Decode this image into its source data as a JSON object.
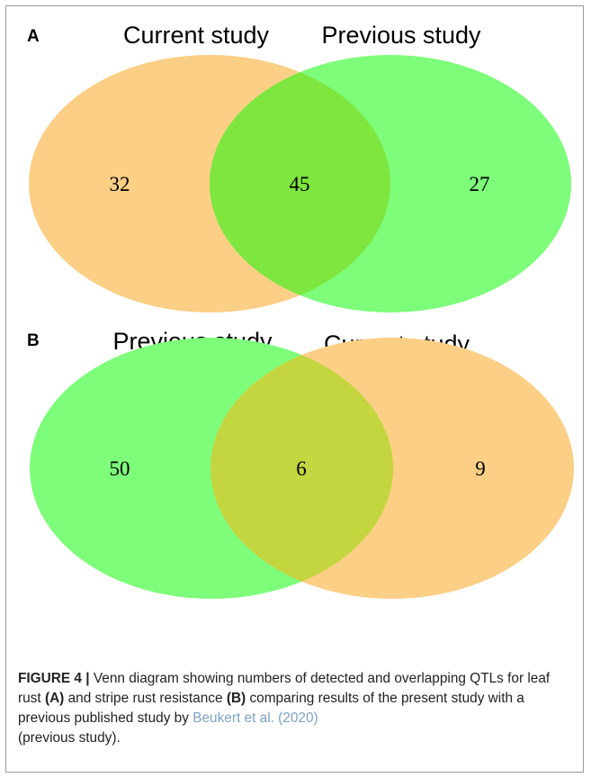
{
  "colors": {
    "orange_set": "#fccf86",
    "green_set": "#7dfd7a",
    "overlap_a": "#7fe63f",
    "overlap_b": "#c4d63f",
    "reference_link": "#7ea3c4"
  },
  "panels": [
    {
      "label": "A",
      "left_set": {
        "title": "Current study",
        "count": "32",
        "color": "orange"
      },
      "right_set": {
        "title": "Previous study",
        "count": "27",
        "color": "green"
      },
      "overlap_count": "45"
    },
    {
      "label": "B",
      "left_set": {
        "title": "Previous study",
        "count": "50",
        "color": "green"
      },
      "right_set": {
        "title": "Current study",
        "count": "9",
        "color": "orange"
      },
      "overlap_count": "6"
    }
  ],
  "caption": {
    "figure_label": "FIGURE 4 |",
    "text_1": " Venn diagram showing numbers of detected and overlapping QTLs for leaf rust ",
    "ref_a": "(A)",
    "text_2": " and stripe rust resistance ",
    "ref_b": "(B)",
    "text_3": " comparing results of the present study with a previous published study by ",
    "citation": "Beukert et al. (2020)",
    "text_4": " (previous study)."
  }
}
